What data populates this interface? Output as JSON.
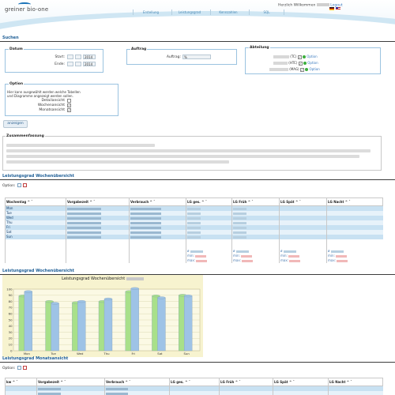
{
  "header": {
    "logo_text": "greiner bio-one",
    "nav": [
      "Erstellung",
      "Leistungsgrad",
      "Kennzahlen",
      "SQL"
    ],
    "welcome": "Herzlich Willkommen",
    "logout": "Logout",
    "colors": {
      "brand": "#1a73b8",
      "nav": "#4a8ab5"
    }
  },
  "search": {
    "title": "Suchen",
    "datum": {
      "title": "Datum",
      "start_label": "Start:",
      "end_label": "Ende:",
      "start": [
        "",
        "",
        "2014"
      ],
      "end": [
        "",
        "",
        "2014"
      ]
    },
    "auftrag": {
      "title": "Auftrag",
      "label": "Auftrag:",
      "value": "%"
    },
    "abteilung": {
      "title": "Abteilung",
      "rows": [
        {
          "code": "(TC)",
          "option": "Option"
        },
        {
          "code": "(HTC)",
          "option": "Option"
        },
        {
          "code": "(MAG)",
          "option": "Option"
        }
      ]
    },
    "option": {
      "title": "Option",
      "description": "Hier kann ausgewählt werden welche Tabellen und Diagramme angezeigt werden sollen.",
      "checks": [
        {
          "label": "Detailansicht",
          "checked": false
        },
        {
          "label": "Wochenansicht",
          "checked": true
        },
        {
          "label": "Monatsansicht",
          "checked": true
        }
      ]
    },
    "button": "anzeigen"
  },
  "summary": {
    "title": "Zusammenfassung"
  },
  "weekly": {
    "title": "Leistungsgrad Wochenübersicht",
    "option_label": "Option:",
    "columns": [
      "Wochentag ^ ˇ",
      "Vorgabezeit ^ ˇ",
      "Verbrauch ^ ˇ",
      "LG ges. ^ ˇ",
      "LG Früh ^ ˇ",
      "LG Spät ^ ˇ",
      "LG Nacht ^ ˇ"
    ],
    "days": [
      "Mon",
      "Tue",
      "Wed",
      "Thu",
      "Fri",
      "Sat",
      "Sun"
    ],
    "sum_labels": [
      "ø",
      "min:",
      "max:"
    ]
  },
  "chart_data": {
    "type": "bar",
    "title": "Leistungsgrad Wochenübersicht",
    "categories": [
      "Mon",
      "Tue",
      "Wed",
      "Thu",
      "Fri",
      "Sat",
      "Sun"
    ],
    "yticks": [
      0,
      10,
      20,
      30,
      40,
      50,
      60,
      70,
      80,
      90,
      100
    ],
    "ylim": [
      0,
      100
    ],
    "series": [
      {
        "color": "#a8e08a",
        "values": [
          89,
          80,
          78,
          80,
          96,
          89,
          90
        ]
      },
      {
        "color": "#9ec3e6",
        "values": [
          96,
          77,
          80,
          84,
          101,
          86,
          89
        ]
      }
    ]
  },
  "monthly": {
    "title": "Leistungsgrad Monatsansicht",
    "option_label": "Option:",
    "columns": [
      "kw ^ ˇ",
      "Vorgabezeit ^ ˇ",
      "Verbrauch ^ ˇ",
      "LG ges. ^ ˇ",
      "LG Früh ^ ˇ",
      "LG Spät ^ ˇ",
      "LG Nacht ^ ˇ"
    ]
  }
}
